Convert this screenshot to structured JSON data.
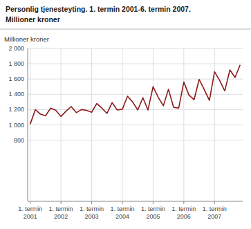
{
  "chart_data": {
    "type": "line",
    "title": "Personlig tjenesteyting. 1. termin 2001-6. termin 2007.",
    "subtitle": "Millioner kroner",
    "y_label": "Millioner kroner",
    "color": "#8b1a1a",
    "grid": true,
    "ylim": [
      0,
      2000
    ],
    "yticks": [
      800,
      {
        "value": 1000,
        "label": "1 000"
      },
      {
        "value": 1200,
        "label": "1 200"
      },
      {
        "value": 1400,
        "label": "1 400"
      },
      {
        "value": 1600,
        "label": "1 600"
      },
      {
        "value": 1800,
        "label": "1 800"
      },
      {
        "value": 2000,
        "label": "2 000"
      }
    ],
    "categories": [
      "1. termin\n2001",
      null,
      null,
      null,
      null,
      null,
      "1. termin\n2002",
      null,
      null,
      null,
      null,
      null,
      "1. termin\n2003",
      null,
      null,
      null,
      null,
      null,
      "1. termin\n2004",
      null,
      null,
      null,
      null,
      null,
      "1. termin\n2005",
      null,
      null,
      null,
      null,
      null,
      "1. termin\n2006",
      null,
      null,
      null,
      null,
      null,
      "1. termin\n2007",
      null,
      null,
      null,
      null,
      null
    ],
    "values": [
      1010,
      1200,
      1140,
      1120,
      1220,
      1190,
      1110,
      1180,
      1240,
      1160,
      1200,
      1190,
      1165,
      1280,
      1220,
      1150,
      1290,
      1195,
      1205,
      1375,
      1300,
      1195,
      1355,
      1195,
      1500,
      1360,
      1250,
      1465,
      1230,
      1220,
      1560,
      1390,
      1330,
      1595,
      1460,
      1320,
      1695,
      1580,
      1445,
      1720,
      1620,
      1785
    ]
  }
}
